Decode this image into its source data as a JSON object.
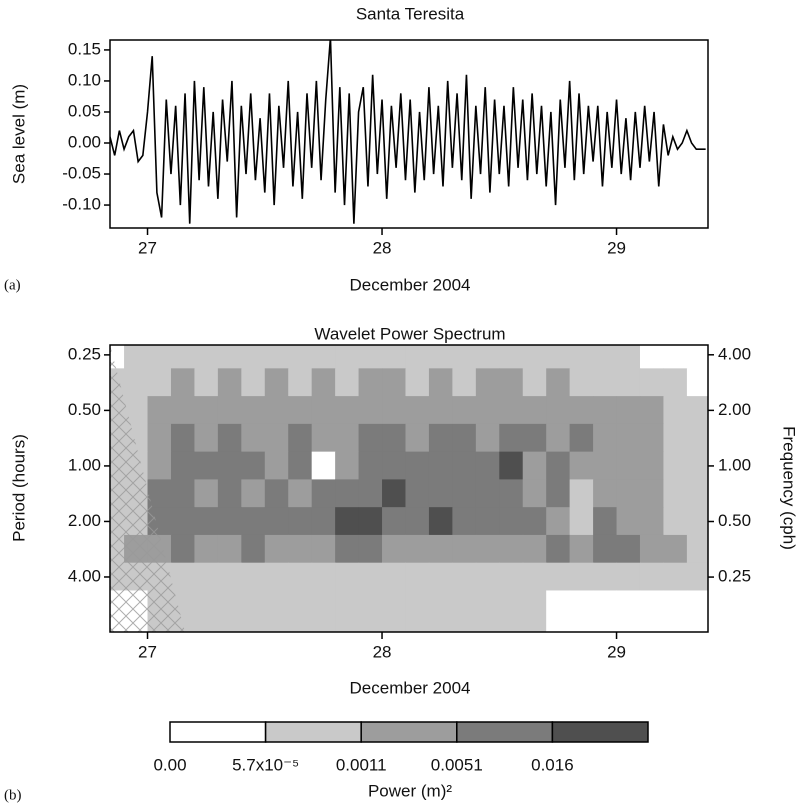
{
  "chart_data": [
    {
      "type": "line",
      "title": "Santa Teresita",
      "xlabel": "December 2004",
      "ylabel": "Sea level (m)",
      "panel_label": "(a)",
      "color": "#000000",
      "x": [
        26.84,
        26.86,
        26.88,
        26.9,
        26.92,
        26.94,
        26.96,
        26.98,
        27,
        27.02,
        27.04,
        27.06,
        27.08,
        27.1,
        27.12,
        27.14,
        27.16,
        27.18,
        27.2,
        27.22,
        27.24,
        27.26,
        27.28,
        27.3,
        27.32,
        27.34,
        27.36,
        27.38,
        27.4,
        27.42,
        27.44,
        27.46,
        27.48,
        27.5,
        27.52,
        27.54,
        27.56,
        27.58,
        27.6,
        27.62,
        27.64,
        27.66,
        27.68,
        27.7,
        27.72,
        27.74,
        27.76,
        27.78,
        27.8,
        27.82,
        27.84,
        27.86,
        27.88,
        27.9,
        27.92,
        27.94,
        27.96,
        27.98,
        28,
        28.02,
        28.04,
        28.06,
        28.08,
        28.1,
        28.12,
        28.14,
        28.16,
        28.18,
        28.2,
        28.22,
        28.24,
        28.26,
        28.28,
        28.3,
        28.32,
        28.34,
        28.36,
        28.38,
        28.4,
        28.42,
        28.44,
        28.46,
        28.48,
        28.5,
        28.52,
        28.54,
        28.56,
        28.58,
        28.6,
        28.62,
        28.64,
        28.66,
        28.68,
        28.7,
        28.72,
        28.74,
        28.76,
        28.78,
        28.8,
        28.82,
        28.84,
        28.86,
        28.88,
        28.9,
        28.92,
        28.94,
        28.96,
        28.98,
        29,
        29.02,
        29.04,
        29.06,
        29.08,
        29.1,
        29.12,
        29.14,
        29.16,
        29.18,
        29.2,
        29.22,
        29.24,
        29.26,
        29.28,
        29.3,
        29.32,
        29.34,
        29.36,
        29.38
      ],
      "values": [
        0.01,
        -0.02,
        0.02,
        -0.01,
        0.01,
        0.02,
        -0.03,
        -0.02,
        0.05,
        0.14,
        -0.08,
        -0.12,
        0.07,
        -0.05,
        0.06,
        -0.1,
        0.08,
        -0.13,
        0.1,
        -0.06,
        0.09,
        -0.07,
        0.05,
        -0.09,
        0.07,
        -0.03,
        0.1,
        -0.12,
        0.06,
        -0.05,
        0.08,
        -0.06,
        0.04,
        -0.08,
        0.08,
        -0.1,
        0.06,
        -0.04,
        0.1,
        -0.07,
        0.05,
        -0.09,
        0.08,
        -0.04,
        0.1,
        -0.06,
        0.07,
        0.17,
        -0.08,
        0.09,
        -0.1,
        0.08,
        -0.13,
        0.05,
        0.09,
        -0.07,
        0.11,
        -0.05,
        0.07,
        -0.09,
        0.06,
        -0.04,
        0.08,
        -0.06,
        0.07,
        -0.08,
        0.05,
        -0.06,
        0.09,
        -0.05,
        0.06,
        -0.07,
        0.1,
        -0.04,
        0.08,
        -0.06,
        0.11,
        -0.09,
        0.06,
        -0.05,
        0.09,
        -0.08,
        0.07,
        -0.05,
        0.06,
        -0.07,
        0.09,
        -0.04,
        0.07,
        -0.06,
        0.08,
        -0.05,
        0.06,
        -0.07,
        0.05,
        -0.1,
        0.07,
        -0.04,
        0.1,
        -0.06,
        0.08,
        -0.05,
        0.06,
        -0.03,
        0.06,
        -0.07,
        0.05,
        -0.04,
        0.07,
        -0.05,
        0.04,
        -0.06,
        0.05,
        -0.04,
        0.06,
        -0.03,
        0.05,
        -0.07,
        0.03,
        -0.02,
        0.01,
        -0.01,
        0,
        0.02,
        0,
        -0.01,
        -0.01,
        -0.01
      ],
      "xlim": [
        26.84,
        29.39
      ],
      "xticks": [
        27,
        28,
        29
      ],
      "ylim": [
        -0.137,
        0.166
      ],
      "yticks": [
        {
          "value": -0.1,
          "label": "-0.10"
        },
        -0.05,
        {
          "value": 0,
          "label": "0.00"
        },
        0.05,
        {
          "value": 0.1,
          "label": "0.10"
        },
        0.15
      ]
    },
    {
      "type": "heatmap",
      "title": "Wavelet Power Spectrum",
      "xlabel": "December 2004",
      "ylabel": "Period (hours)",
      "y2label": "Frequency (cph)",
      "panel_label": "(b)",
      "x": [
        26.85,
        26.95,
        27.05,
        27.15,
        27.25,
        27.35,
        27.45,
        27.55,
        27.65,
        27.75,
        27.85,
        27.95,
        28.05,
        28.15,
        28.25,
        28.35,
        28.45,
        28.55,
        28.65,
        28.75,
        28.85,
        28.95,
        29.05,
        29.15,
        29.25,
        29.35
      ],
      "y": [
        0.25,
        0.35,
        0.5,
        0.7,
        1,
        1.4,
        2,
        2.8,
        4,
        5.6
      ],
      "values": [
        [
          0,
          0.0001,
          0.0001,
          0.0001,
          0.0001,
          0.0001,
          0.0001,
          0.0001,
          0.0001,
          0.0001,
          0.0001,
          0.0001,
          0.0001,
          0.0001,
          0.0001,
          0.0001,
          0.0001,
          0.0001,
          0.0001,
          0.0001,
          0.0001,
          0.0001,
          0.0001,
          0,
          0,
          0
        ],
        [
          0.0001,
          0.0001,
          0.0001,
          0.002,
          0.0001,
          0.002,
          0.0001,
          0.002,
          0.0001,
          0.002,
          0.0001,
          0.002,
          0.002,
          0.0001,
          0.002,
          0.0001,
          0.002,
          0.002,
          0.0001,
          0.002,
          0.0001,
          0.0001,
          0.0001,
          0.0001,
          0.0001,
          0
        ],
        [
          0.0001,
          0.0001,
          0.002,
          0.002,
          0.002,
          0.002,
          0.002,
          0.002,
          0.002,
          0.002,
          0.002,
          0.002,
          0.002,
          0.002,
          0.002,
          0.002,
          0.002,
          0.002,
          0.002,
          0.002,
          0.002,
          0.002,
          0.002,
          0.002,
          0.0001,
          0.0001
        ],
        [
          0.0001,
          0.0001,
          0.002,
          0.008,
          0.002,
          0.008,
          0.002,
          0.002,
          0.008,
          0.002,
          0.002,
          0.008,
          0.008,
          0.002,
          0.008,
          0.008,
          0.002,
          0.008,
          0.008,
          0.002,
          0.008,
          0.002,
          0.002,
          0.002,
          0.0001,
          0.0001
        ],
        [
          0.0001,
          0.0001,
          0.002,
          0.008,
          0.008,
          0.008,
          0.008,
          0.002,
          0.008,
          0,
          0.002,
          0.008,
          0.008,
          0.008,
          0.008,
          0.008,
          0.008,
          0.02,
          0.002,
          0.008,
          0.002,
          0.002,
          0.002,
          0.002,
          0.0001,
          0.0001
        ],
        [
          0.0001,
          0.0001,
          0.008,
          0.008,
          0.002,
          0.008,
          0.002,
          0.008,
          0.002,
          0.008,
          0.008,
          0.008,
          0.02,
          0.008,
          0.008,
          0.008,
          0.008,
          0.008,
          0.002,
          0.008,
          0.0001,
          0.002,
          0.002,
          0.002,
          0.0001,
          0.0001
        ],
        [
          0.0001,
          0.0001,
          0.008,
          0.008,
          0.008,
          0.008,
          0.008,
          0.008,
          0.008,
          0.008,
          0.02,
          0.02,
          0.008,
          0.008,
          0.02,
          0.008,
          0.008,
          0.008,
          0.008,
          0.002,
          0.0001,
          0.008,
          0.002,
          0.002,
          0.0001,
          0.0001
        ],
        [
          0.0001,
          0.002,
          0.002,
          0.008,
          0.002,
          0.002,
          0.008,
          0.002,
          0.002,
          0.002,
          0.008,
          0.008,
          0.002,
          0.002,
          0.002,
          0.002,
          0.002,
          0.002,
          0.002,
          0.008,
          0.002,
          0.008,
          0.008,
          0.002,
          0.002,
          0.0001
        ],
        [
          0.0001,
          0.0001,
          0.0001,
          0.0001,
          0.0001,
          0.0001,
          0.0001,
          0.0001,
          0.0001,
          0.0001,
          0.0001,
          0.0001,
          0.0001,
          0.0001,
          0.0001,
          0.0001,
          0.0001,
          0.0001,
          0.0001,
          0.0001,
          0.0001,
          0.0001,
          0.0001,
          0.0001,
          0.0001,
          0.0001
        ],
        [
          0,
          0,
          0.0001,
          0.0001,
          0.0001,
          0.0001,
          0.0001,
          0.0001,
          0.0001,
          0.0001,
          0.0001,
          0.0001,
          0.0001,
          0.0001,
          0.0001,
          0.0001,
          0.0001,
          0.0001,
          0.0001,
          0,
          0,
          0,
          0,
          0,
          0,
          0
        ]
      ],
      "xlim": [
        26.84,
        29.39
      ],
      "xticks": [
        27,
        28,
        29
      ],
      "ylim": [
        0.221,
        7.95
      ],
      "y_log": true,
      "y_inverted": true,
      "yticks": [
        0.25,
        {
          "value": 0.5,
          "label": "0.50"
        },
        {
          "value": 1,
          "label": "1.00"
        },
        {
          "value": 2,
          "label": "2.00"
        },
        {
          "value": 4,
          "label": "4.00"
        }
      ],
      "y2lim": [
        4.52,
        0.126
      ],
      "y2ticks": [
        {
          "value": 4,
          "label": "4.00"
        },
        {
          "value": 2,
          "label": "2.00"
        },
        {
          "value": 1,
          "label": "1.00"
        },
        {
          "value": 0.5,
          "label": "0.50"
        },
        0.25
      ],
      "colorbar": {
        "label": "Power (m)²",
        "ticks": [
          {
            "value": 0,
            "label": "0.00"
          },
          {
            "value": 5.7e-05,
            "label": "5.7x10⁻⁵"
          },
          0.0011,
          0.0051,
          0.016
        ],
        "colors": [
          "#ffffff",
          "#c9c9c9",
          "#9d9d9d",
          "#7b7b7b",
          "#4f4f4f"
        ]
      }
    }
  ]
}
